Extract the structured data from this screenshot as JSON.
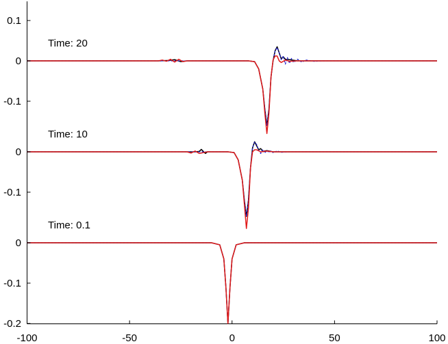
{
  "chart_data": {
    "type": "line",
    "title": "",
    "xlabel": "",
    "ylabel": "",
    "xlim": [
      -100,
      100
    ],
    "x_ticks": [
      -100,
      -50,
      0,
      50,
      100
    ],
    "grid": false,
    "panels": [
      {
        "label": "Time:  0.1",
        "y_ticks": [
          0,
          -0.1,
          -0.2
        ],
        "series": [
          {
            "color": "#000000",
            "style": "solid",
            "points": [
              [
                -100,
                0
              ],
              [
                -10,
                0
              ],
              [
                -6,
                -0.005
              ],
              [
                -4,
                -0.04
              ],
              [
                -3,
                -0.11
              ],
              [
                -2,
                -0.2
              ],
              [
                -1,
                -0.11
              ],
              [
                0,
                -0.04
              ],
              [
                2,
                -0.005
              ],
              [
                6,
                0
              ],
              [
                100,
                0
              ]
            ]
          },
          {
            "color": "#1f1fcc",
            "style": "dashed",
            "points": [
              [
                -100,
                0
              ],
              [
                -10,
                0
              ],
              [
                -6,
                -0.005
              ],
              [
                -4,
                -0.04
              ],
              [
                -3,
                -0.11
              ],
              [
                -2,
                -0.2
              ],
              [
                -1,
                -0.11
              ],
              [
                0,
                -0.04
              ],
              [
                2,
                -0.005
              ],
              [
                6,
                0
              ],
              [
                100,
                0
              ]
            ]
          },
          {
            "color": "#e01a1a",
            "style": "solid",
            "points": [
              [
                -100,
                0
              ],
              [
                -10,
                0
              ],
              [
                -6,
                -0.005
              ],
              [
                -4,
                -0.04
              ],
              [
                -3,
                -0.11
              ],
              [
                -2,
                -0.2
              ],
              [
                -1,
                -0.11
              ],
              [
                0,
                -0.04
              ],
              [
                2,
                -0.005
              ],
              [
                6,
                0
              ],
              [
                100,
                0
              ]
            ]
          }
        ]
      },
      {
        "label": "Time:  10",
        "y_ticks": [
          0,
          -0.1
        ],
        "series": [
          {
            "color": "#000000",
            "style": "solid",
            "points": [
              [
                -100,
                0
              ],
              [
                -18,
                0
              ],
              [
                -16,
                0.001
              ],
              [
                -15,
                0.006
              ],
              [
                -14,
                0.001
              ],
              [
                -13,
                -0.004
              ],
              [
                -12,
                0
              ],
              [
                -2,
                0
              ],
              [
                1,
                -0.002
              ],
              [
                3,
                -0.02
              ],
              [
                5,
                -0.07
              ],
              [
                6,
                -0.12
              ],
              [
                7,
                -0.16
              ],
              [
                8,
                -0.12
              ],
              [
                9,
                -0.04
              ],
              [
                10,
                0.01
              ],
              [
                11,
                0.025
              ],
              [
                12,
                0.015
              ],
              [
                13,
                0.005
              ],
              [
                14,
                0.008
              ],
              [
                15,
                0.001
              ],
              [
                17,
                0.003
              ],
              [
                20,
                0
              ],
              [
                100,
                0
              ]
            ]
          },
          {
            "color": "#1f1fcc",
            "style": "dashed",
            "points": [
              [
                -100,
                0
              ],
              [
                -2,
                0
              ],
              [
                1,
                -0.002
              ],
              [
                3,
                -0.02
              ],
              [
                5,
                -0.07
              ],
              [
                6,
                -0.12
              ],
              [
                7,
                -0.16
              ],
              [
                8,
                -0.12
              ],
              [
                9,
                -0.04
              ],
              [
                10,
                0.01
              ],
              [
                11,
                0.024
              ],
              [
                12,
                0.018
              ],
              [
                13,
                0.004
              ],
              [
                14,
                -0.004
              ],
              [
                15,
                0.006
              ],
              [
                16,
                -0.003
              ],
              [
                17,
                0.004
              ],
              [
                18,
                -0.002
              ],
              [
                19,
                0.003
              ],
              [
                20,
                -0.002
              ],
              [
                22,
                0.002
              ],
              [
                24,
                -0.001
              ],
              [
                28,
                0
              ],
              [
                100,
                0
              ]
            ]
          },
          {
            "color": "#e01a1a",
            "style": "solid",
            "points": [
              [
                -100,
                0
              ],
              [
                -22,
                0
              ],
              [
                -20,
                -0.003
              ],
              [
                -18,
                0.002
              ],
              [
                -16,
                -0.004
              ],
              [
                -14,
                -0.002
              ],
              [
                -12,
                0
              ],
              [
                -2,
                0
              ],
              [
                1,
                -0.002
              ],
              [
                3,
                -0.02
              ],
              [
                5,
                -0.07
              ],
              [
                6,
                -0.13
              ],
              [
                7,
                -0.19
              ],
              [
                8,
                -0.14
              ],
              [
                9,
                -0.04
              ],
              [
                10,
                0.0
              ],
              [
                11,
                0.005
              ],
              [
                12,
                0.005
              ],
              [
                14,
                0.0
              ],
              [
                17,
                0.002
              ],
              [
                20,
                0
              ],
              [
                100,
                0
              ]
            ]
          }
        ]
      },
      {
        "label": "Time:  20",
        "y_ticks": [
          0.1,
          0,
          -0.1
        ],
        "series": [
          {
            "color": "#000000",
            "style": "solid",
            "points": [
              [
                -100,
                0
              ],
              [
                -36,
                0
              ],
              [
                -31,
                0.001
              ],
              [
                -28,
                0.003
              ],
              [
                -25,
                -0.002
              ],
              [
                -22,
                0
              ],
              [
                8,
                0
              ],
              [
                11,
                -0.002
              ],
              [
                13,
                -0.02
              ],
              [
                15,
                -0.07
              ],
              [
                16,
                -0.12
              ],
              [
                17,
                -0.16
              ],
              [
                18,
                -0.12
              ],
              [
                19,
                -0.04
              ],
              [
                20,
                0.0
              ],
              [
                21,
                0.025
              ],
              [
                22,
                0.035
              ],
              [
                23,
                0.02
              ],
              [
                24,
                0.005
              ],
              [
                25,
                0.01
              ],
              [
                26,
                0.004
              ],
              [
                28,
                0.003
              ],
              [
                32,
                0
              ],
              [
                100,
                0
              ]
            ]
          },
          {
            "color": "#1f1fcc",
            "style": "dashed",
            "points": [
              [
                -100,
                0
              ],
              [
                8,
                0
              ],
              [
                11,
                -0.002
              ],
              [
                13,
                -0.02
              ],
              [
                15,
                -0.07
              ],
              [
                16,
                -0.12
              ],
              [
                17,
                -0.16
              ],
              [
                18,
                -0.12
              ],
              [
                19,
                -0.04
              ],
              [
                20,
                0.0
              ],
              [
                21,
                0.025
              ],
              [
                22,
                0.033
              ],
              [
                23,
                0.02
              ],
              [
                24,
                0.003
              ],
              [
                25,
                0.012
              ],
              [
                26,
                -0.008
              ],
              [
                27,
                0.008
              ],
              [
                28,
                -0.006
              ],
              [
                29,
                0.006
              ],
              [
                30,
                -0.004
              ],
              [
                32,
                0.004
              ],
              [
                34,
                -0.003
              ],
              [
                36,
                0.002
              ],
              [
                40,
                -0.001
              ],
              [
                45,
                0
              ],
              [
                100,
                0
              ]
            ]
          },
          {
            "color": "#e01a1a",
            "style": "solid",
            "points": [
              [
                -100,
                0
              ],
              [
                -36,
                0
              ],
              [
                -34,
                0.002
              ],
              [
                -32,
                -0.001
              ],
              [
                -30,
                0.004
              ],
              [
                -28,
                -0.003
              ],
              [
                -26,
                0.004
              ],
              [
                -24,
                -0.002
              ],
              [
                -22,
                0
              ],
              [
                8,
                0
              ],
              [
                11,
                -0.002
              ],
              [
                13,
                -0.02
              ],
              [
                15,
                -0.07
              ],
              [
                16,
                -0.13
              ],
              [
                17,
                -0.18
              ],
              [
                18,
                -0.13
              ],
              [
                19,
                -0.04
              ],
              [
                20,
                0.002
              ],
              [
                21,
                0.012
              ],
              [
                22,
                0.012
              ],
              [
                23,
                0.0
              ],
              [
                24,
                -0.004
              ],
              [
                26,
                0.002
              ],
              [
                28,
                -0.001
              ],
              [
                32,
                0
              ],
              [
                100,
                0
              ]
            ]
          }
        ]
      }
    ]
  }
}
